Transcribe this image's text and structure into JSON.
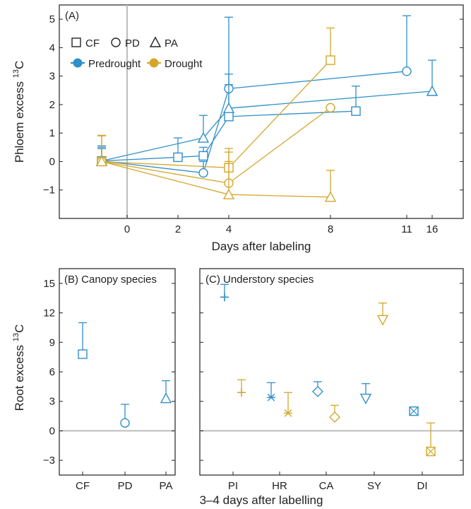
{
  "colors": {
    "predrought": "#2f8fc9",
    "drought": "#d4a72c",
    "zero_line": "#bdbdbd",
    "axis": "#222222"
  },
  "chart_data": [
    {
      "panel": "A",
      "type": "line",
      "panel_label": "(A)",
      "xlabel": "Days after labeling",
      "ylabel": "Phloem excess",
      "ylabel_sup": "13",
      "ylabel_suffix": "C",
      "ylim": [
        -2,
        5.5
      ],
      "yticks": [
        -1,
        0,
        1,
        2,
        3,
        4,
        5
      ],
      "xticks": [
        "0",
        "2",
        "4",
        "8",
        "11",
        "16"
      ],
      "x_axis_note": "broken/nonlinear day axis; pretreatment points plotted before day 0",
      "legend_markers": [
        "CF",
        "PD",
        "PA"
      ],
      "legend_treatments": [
        "Predrought",
        "Drought"
      ],
      "series": [
        {
          "species": "CF",
          "treatment": "Predrought",
          "marker": "square",
          "x": [
            -1.5,
            2,
            3,
            4,
            9
          ],
          "y": [
            0.02,
            0.15,
            0.2,
            1.58,
            1.77
          ],
          "err_upper": [
            0.5,
            0.83,
            0.5,
            3.07,
            2.65
          ]
        },
        {
          "species": "PD",
          "treatment": "Predrought",
          "marker": "circle",
          "x": [
            -1.5,
            3,
            4,
            11
          ],
          "y": [
            0.02,
            -0.4,
            2.56,
            3.17
          ],
          "err_upper": [
            0.45,
            0.0,
            5.07,
            5.12
          ]
        },
        {
          "species": "PA",
          "treatment": "Predrought",
          "marker": "triangle",
          "x": [
            -1.5,
            3,
            4,
            16
          ],
          "y": [
            0.02,
            0.83,
            1.87,
            2.47
          ],
          "err_upper": [
            0.55,
            1.62,
            2.7,
            3.56
          ]
        },
        {
          "species": "CF",
          "treatment": "Drought",
          "marker": "square",
          "x": [
            -1.5,
            4,
            8
          ],
          "y": [
            0.0,
            -0.22,
            3.56
          ],
          "err_upper": [
            0.92,
            0.46,
            4.69
          ]
        },
        {
          "species": "PD",
          "treatment": "Drought",
          "marker": "circle",
          "x": [
            -1.5,
            4,
            8
          ],
          "y": [
            0.0,
            -0.76,
            1.89
          ],
          "err_upper": [
            0.9,
            0.33,
            1.89
          ]
        },
        {
          "species": "PA",
          "treatment": "Drought",
          "marker": "triangle",
          "x": [
            -1.5,
            4,
            8
          ],
          "y": [
            0.0,
            -1.16,
            -1.25
          ],
          "err_upper": [
            0.0,
            0.0,
            -0.31
          ]
        }
      ]
    },
    {
      "panel": "B",
      "type": "scatter",
      "panel_label": "(B) Canopy species",
      "ylabel": "Root excess",
      "ylabel_sup": "13",
      "ylabel_suffix": "C",
      "ylim": [
        -4.5,
        16.5
      ],
      "yticks": [
        -3,
        0,
        3,
        6,
        9,
        12,
        15
      ],
      "categories": [
        "CF",
        "PD",
        "PA"
      ],
      "points": [
        {
          "category": "CF",
          "treatment": "Predrought",
          "marker": "square",
          "y": 7.8,
          "err_upper": 11.0
        },
        {
          "category": "PD",
          "treatment": "Predrought",
          "marker": "circle",
          "y": 0.8,
          "err_upper": 2.7
        },
        {
          "category": "PA",
          "treatment": "Predrought",
          "marker": "triangle",
          "y": 3.3,
          "err_upper": 5.1
        }
      ]
    },
    {
      "panel": "C",
      "type": "scatter",
      "panel_label": "(C) Understory species",
      "ylim": [
        -4.5,
        16.5
      ],
      "yticks": [
        -3,
        0,
        3,
        6,
        9,
        12,
        15
      ],
      "categories": [
        "PI",
        "HR",
        "CA",
        "SY",
        "DI"
      ],
      "shared_xlabel": "3–4 days after labelling",
      "points": [
        {
          "category": "PI",
          "treatment": "Predrought",
          "marker": "plus",
          "y": 13.6,
          "err_upper": 14.9
        },
        {
          "category": "PI",
          "treatment": "Drought",
          "marker": "plus",
          "y": 3.9,
          "err_upper": 5.2
        },
        {
          "category": "HR",
          "treatment": "Predrought",
          "marker": "asterisk",
          "y": 3.4,
          "err_upper": 4.9
        },
        {
          "category": "HR",
          "treatment": "Drought",
          "marker": "asterisk",
          "y": 1.8,
          "err_upper": 3.9
        },
        {
          "category": "CA",
          "treatment": "Predrought",
          "marker": "diamond",
          "y": 4.0,
          "err_upper": 5.0
        },
        {
          "category": "CA",
          "treatment": "Drought",
          "marker": "diamond",
          "y": 1.4,
          "err_upper": 2.6
        },
        {
          "category": "SY",
          "treatment": "Predrought",
          "marker": "triangle-down",
          "y": 3.3,
          "err_upper": 4.8
        },
        {
          "category": "SY",
          "treatment": "Drought",
          "marker": "triangle-down",
          "y": 11.3,
          "err_upper": 13.0
        },
        {
          "category": "DI",
          "treatment": "Predrought",
          "marker": "boxx",
          "y": 2.0,
          "err_upper": 2.4
        },
        {
          "category": "DI",
          "treatment": "Drought",
          "marker": "boxx",
          "y": -2.1,
          "err_upper": 0.8
        }
      ]
    }
  ]
}
